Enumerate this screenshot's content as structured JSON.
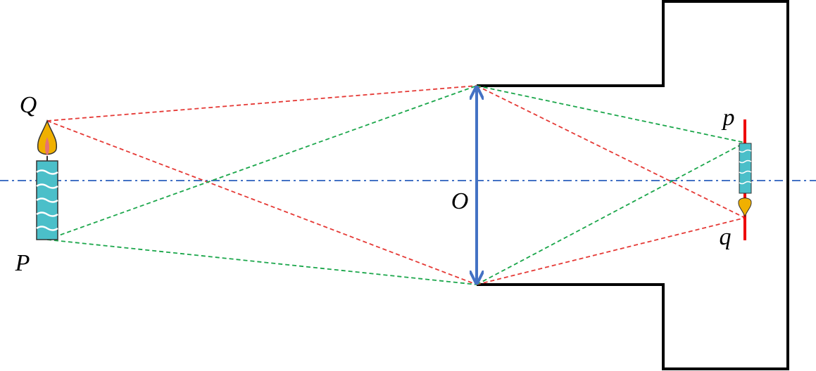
{
  "labels": {
    "object_top": "Q",
    "object_bottom": "P",
    "lens_center": "O",
    "image_top": "p",
    "image_bottom": "q"
  }
}
